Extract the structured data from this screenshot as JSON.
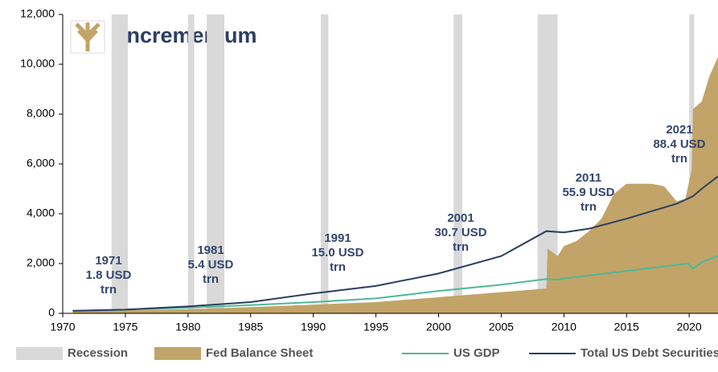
{
  "chart_data": {
    "type": "area-line",
    "logo": "incrementum",
    "xlim": [
      1970,
      2022.3
    ],
    "xticks": [
      1970,
      1975,
      1980,
      1985,
      1990,
      1995,
      2000,
      2005,
      2010,
      2015,
      2020
    ],
    "ylim": [
      0,
      12000
    ],
    "yticks": [
      0,
      {
        "value": 2000,
        "label": "2,000"
      },
      {
        "value": 4000,
        "label": "4,000"
      },
      {
        "value": 6000,
        "label": "6,000"
      },
      {
        "value": 8000,
        "label": "8,000"
      },
      {
        "value": 10000,
        "label": "10,000"
      },
      {
        "value": 12000,
        "label": "12,000"
      }
    ],
    "recessions": {
      "name": "Recession",
      "color": "#d9d9d9",
      "periods": [
        [
          1973.9,
          1975.2
        ],
        [
          1980.0,
          1980.5
        ],
        [
          1981.5,
          1982.9
        ],
        [
          1990.6,
          1991.2
        ],
        [
          2001.2,
          2001.9
        ],
        [
          2007.9,
          2009.5
        ],
        [
          2020.0,
          2020.4
        ]
      ]
    },
    "series": [
      {
        "name": "Fed Balance Sheet",
        "kind": "area",
        "color": "#c2a468",
        "x": [
          1970.8,
          1975,
          1980,
          1985,
          1990,
          1995,
          2000,
          2005,
          2008.6,
          2008.7,
          2009.5,
          2010,
          2011,
          2012,
          2013,
          2014,
          2015,
          2016,
          2017,
          2018,
          2019,
          2019.7,
          2020.2,
          2020.3,
          2021,
          2021.6,
          2022.3
        ],
        "values": [
          80,
          120,
          170,
          250,
          350,
          450,
          650,
          850,
          1000,
          2600,
          2300,
          2700,
          2900,
          3300,
          3800,
          4800,
          5200,
          5200,
          5200,
          5100,
          4500,
          4600,
          5800,
          8200,
          8500,
          9500,
          10300
        ]
      },
      {
        "name": "US GDP",
        "kind": "line",
        "color": "#4db89a",
        "x": [
          1970.8,
          1975,
          1980,
          1985,
          1990,
          1995,
          2000,
          2005,
          2008.6,
          2009.5,
          2010,
          2015,
          2019.9,
          2020.3,
          2021,
          2022.3
        ],
        "values": [
          100,
          150,
          230,
          330,
          450,
          600,
          900,
          1150,
          1380,
          1350,
          1400,
          1700,
          2000,
          1800,
          2050,
          2300
        ]
      },
      {
        "name": "Total US Debt Securities",
        "kind": "line",
        "color": "#2c3e63",
        "x": [
          1970.8,
          1975,
          1980,
          1985,
          1990,
          1995,
          2000,
          2005,
          2008.6,
          2010,
          2012,
          2015,
          2019,
          2020.3,
          2021,
          2022.3
        ],
        "values": [
          100,
          150,
          280,
          450,
          800,
          1100,
          1600,
          2300,
          3300,
          3250,
          3400,
          3800,
          4400,
          4700,
          5000,
          5500
        ]
      }
    ],
    "annotations": [
      [
        "1971",
        "1.8 USD",
        "trn"
      ],
      [
        "1981",
        "5.4 USD",
        "trn"
      ],
      [
        "1991",
        "15.0 USD",
        "trn"
      ],
      [
        "2001",
        "30.7 USD",
        "trn"
      ],
      [
        "2011",
        "55.9 USD",
        "trn"
      ],
      [
        "2021",
        "88.4 USD",
        "trn"
      ]
    ]
  }
}
